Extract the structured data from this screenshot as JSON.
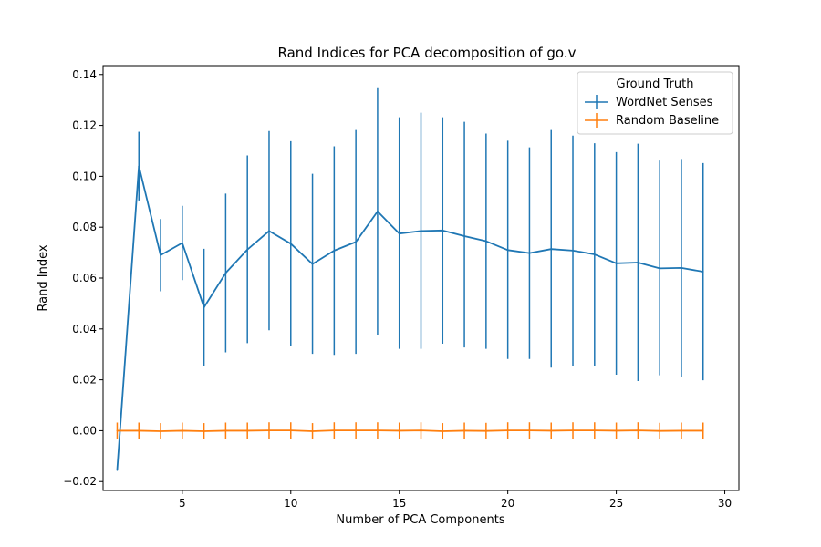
{
  "chart_data": {
    "type": "line",
    "title": "Rand Indices for PCA decomposition of go.v",
    "xlabel": "Number of PCA Components",
    "ylabel": "Rand Index",
    "xlim": [
      1.35,
      30.65
    ],
    "ylim": [
      -0.0235,
      0.1435
    ],
    "xticks": [
      5,
      10,
      15,
      20,
      25,
      30
    ],
    "yticks": [
      -0.02,
      0.0,
      0.02,
      0.04,
      0.06,
      0.08,
      0.1,
      0.12,
      0.14
    ],
    "ytick_labels": [
      "−0.02",
      "0.00",
      "0.02",
      "0.04",
      "0.06",
      "0.08",
      "0.10",
      "0.12",
      "0.14"
    ],
    "grid": false,
    "legend": {
      "title": "Ground Truth",
      "position": "top-right"
    },
    "x": [
      2,
      3,
      4,
      5,
      6,
      7,
      8,
      9,
      10,
      11,
      12,
      13,
      14,
      15,
      16,
      17,
      18,
      19,
      20,
      21,
      22,
      23,
      24,
      25,
      26,
      27,
      28,
      29
    ],
    "series": [
      {
        "name": "WordNet Senses",
        "color": "#1f77b4",
        "values": [
          -0.0155,
          0.104,
          0.069,
          0.0738,
          0.0485,
          0.062,
          0.0712,
          0.0785,
          0.0735,
          0.0655,
          0.0708,
          0.0742,
          0.0862,
          0.0775,
          0.0785,
          0.0787,
          0.0765,
          0.0745,
          0.071,
          0.0698,
          0.0714,
          0.0708,
          0.0693,
          0.0658,
          0.0661,
          0.0638,
          0.064,
          0.0625
        ],
        "err_low": [
          null,
          0.0905,
          0.0548,
          0.0592,
          0.0255,
          0.0308,
          0.0344,
          0.0395,
          0.0335,
          0.0302,
          0.0298,
          0.0302,
          0.0375,
          0.0322,
          0.0322,
          0.0342,
          0.0327,
          0.0322,
          0.0282,
          0.0282,
          0.0248,
          0.0256,
          0.0255,
          0.022,
          0.0195,
          0.0218,
          0.0212,
          0.0198
        ],
        "err_high": [
          null,
          0.1175,
          0.0832,
          0.0884,
          0.0715,
          0.0932,
          0.1082,
          0.1178,
          0.1138,
          0.101,
          0.1118,
          0.1182,
          0.135,
          0.1232,
          0.125,
          0.1232,
          0.1214,
          0.1168,
          0.114,
          0.1114,
          0.1182,
          0.116,
          0.113,
          0.1095,
          0.1128,
          0.1062,
          0.1068,
          0.1052
        ]
      },
      {
        "name": "Random Baseline",
        "color": "#ff7f0e",
        "values": [
          0.0,
          0.0,
          -0.0002,
          0.0,
          -0.0002,
          0.0,
          0.0,
          0.0001,
          0.0001,
          -0.0002,
          0.0001,
          0.0001,
          0.0001,
          0.0,
          0.0001,
          -0.0002,
          0.0,
          -0.0001,
          0.0001,
          0.0001,
          0.0,
          0.0001,
          0.0001,
          0.0,
          0.0001,
          -0.0001,
          0.0,
          0.0
        ],
        "err": 0.0032
      }
    ]
  }
}
